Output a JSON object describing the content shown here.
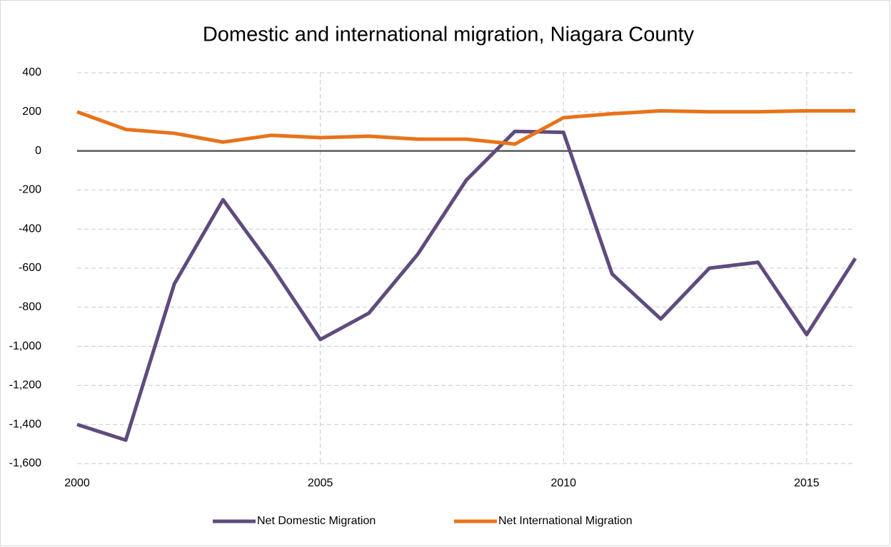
{
  "chart_data": {
    "type": "line",
    "title": "Domestic and international migration, Niagara County",
    "x": [
      2000,
      2001,
      2002,
      2003,
      2004,
      2005,
      2006,
      2007,
      2008,
      2009,
      2010,
      2011,
      2012,
      2013,
      2014,
      2015,
      2016
    ],
    "series": [
      {
        "name": "Net Domestic Migration",
        "color": "#5f4b7e",
        "values": [
          -1400,
          -1480,
          -680,
          -250,
          -590,
          -965,
          -830,
          -530,
          -150,
          100,
          95,
          -630,
          -860,
          -600,
          -570,
          -940,
          -550
        ]
      },
      {
        "name": "Net International Migration",
        "color": "#e8731b",
        "values": [
          200,
          110,
          90,
          45,
          80,
          68,
          75,
          60,
          60,
          35,
          170,
          190,
          205,
          200,
          200,
          205,
          205
        ]
      }
    ],
    "xlim": [
      2000,
      2016
    ],
    "xticks": [
      2000,
      2005,
      2010,
      2015
    ],
    "ylim": [
      -1600,
      400
    ],
    "yticks": [
      {
        "value": -1600,
        "label": "-1,600"
      },
      {
        "value": -1400,
        "label": "-1,400"
      },
      {
        "value": -1200,
        "label": "-1,200"
      },
      {
        "value": -1000,
        "label": "-1,000"
      },
      -800,
      -600,
      -400,
      -200,
      0,
      200,
      400
    ],
    "grid": true,
    "legend": "bottom"
  }
}
